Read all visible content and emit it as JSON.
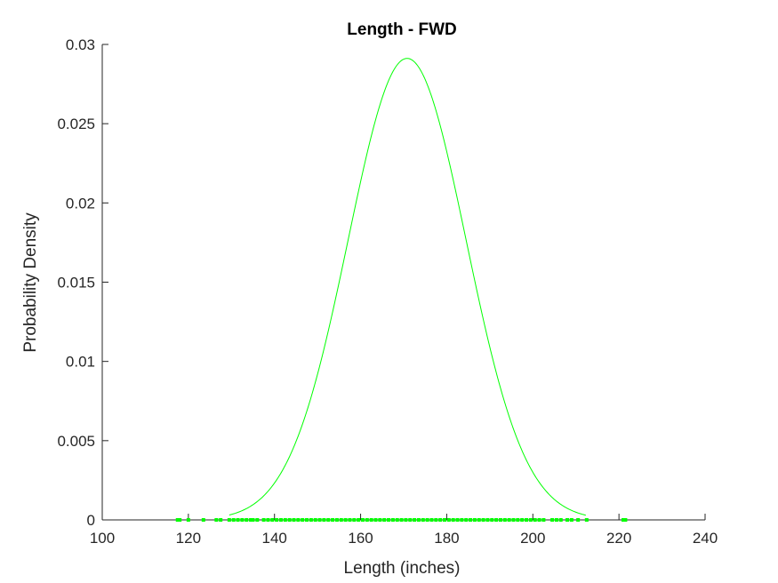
{
  "chart_data": {
    "type": "line",
    "title": "Length - FWD",
    "xlabel": "Length (inches)",
    "ylabel": "Probability Density",
    "xlim": [
      100,
      240
    ],
    "ylim": [
      0,
      0.03
    ],
    "x_ticks": [
      "100",
      "120",
      "140",
      "160",
      "180",
      "200",
      "220",
      "240"
    ],
    "y_ticks": [
      "0",
      "0.005",
      "0.01",
      "0.015",
      "0.02",
      "0.025",
      "0.03"
    ],
    "grid": false,
    "line_color": "#00ff00",
    "series": [
      {
        "type": "normal-pdf-curve",
        "mean": 170.8,
        "std": 13.7,
        "x_range": [
          129.5,
          212.3
        ],
        "peak_value": 0.0291
      },
      {
        "type": "data-markers-on-x-axis",
        "x": [
          117.5,
          118.0,
          120.0,
          123.5,
          126.5,
          127.5,
          129.5,
          130.5,
          131.5,
          132.5,
          133.5,
          134.5,
          135.0,
          136.0,
          137.5,
          138.5,
          139.5,
          140.5,
          141.5,
          142.5,
          143.5,
          144.5,
          145.5,
          146.5,
          147.5,
          148.5,
          149.5,
          150.5,
          151.5,
          152.5,
          153.5,
          154.5,
          155.5,
          156.5,
          157.5,
          158.5,
          159.5,
          160.5,
          161.5,
          162.5,
          163.5,
          164.5,
          165.5,
          166.5,
          167.5,
          168.5,
          169.5,
          170.5,
          171.5,
          172.5,
          173.5,
          174.5,
          175.5,
          176.5,
          177.5,
          178.5,
          179.5,
          180.5,
          181.5,
          182.5,
          183.5,
          184.5,
          185.5,
          186.5,
          187.5,
          188.5,
          189.5,
          190.5,
          191.5,
          192.5,
          193.5,
          194.5,
          195.5,
          196.5,
          197.5,
          198.5,
          199.5,
          200.5,
          201.5,
          202.5,
          204.5,
          205.5,
          206.5,
          208.0,
          209.0,
          210.5,
          212.5,
          221.0,
          221.5
        ]
      }
    ]
  }
}
